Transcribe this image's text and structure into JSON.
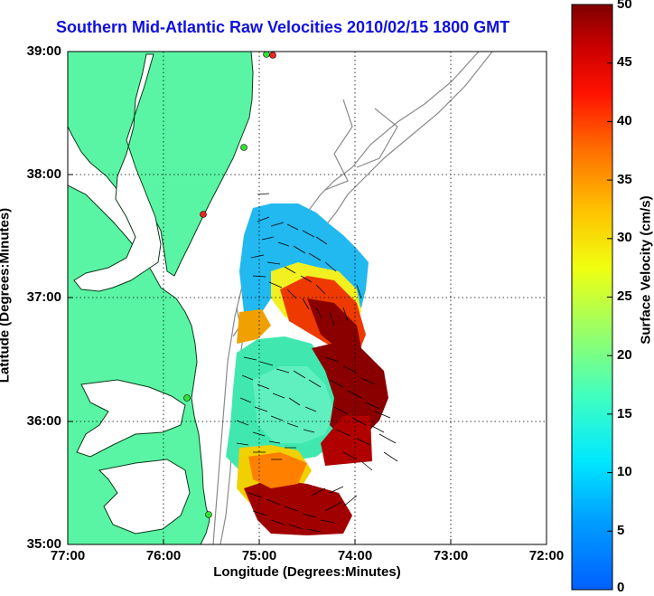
{
  "title": "Southern Mid-Atlantic Raw Velocities 2010/02/15 1800 GMT",
  "axes": {
    "xlabel": "Longitude (Degrees:Minutes)",
    "ylabel": "Latitude (Degrees:Minutes)",
    "xticks": [
      "77:00",
      "76:00",
      "75:00",
      "74:00",
      "73:00",
      "72:00"
    ],
    "yticks": [
      "39:00",
      "38:00",
      "37:00",
      "36:00",
      "35:00"
    ],
    "xlim": [
      -77,
      -72
    ],
    "ylim": [
      35,
      39
    ]
  },
  "colorbar": {
    "label": "Surface Velocity (cm/s)",
    "ticks": [
      "50",
      "45",
      "40",
      "35",
      "30",
      "25",
      "20",
      "15",
      "10",
      "5",
      "0"
    ],
    "range": [
      0,
      50
    ]
  },
  "colors": {
    "land": "#5af5a4",
    "coastline": "#0a3a1a",
    "bathymetry": "#8a8a8a",
    "title": "#1010e0",
    "stations": [
      "#33e033",
      "#ee2222"
    ]
  },
  "chart_data": {
    "type": "heatmap",
    "title": "Southern Mid-Atlantic Raw Velocities 2010/02/15 1800 GMT",
    "xlabel": "Longitude (Degrees:Minutes)",
    "ylabel": "Latitude (Degrees:Minutes)",
    "xlim": [
      -77,
      -72
    ],
    "ylim": [
      35,
      39
    ],
    "color_range_cm_s": [
      0,
      50
    ],
    "grid": true
  }
}
